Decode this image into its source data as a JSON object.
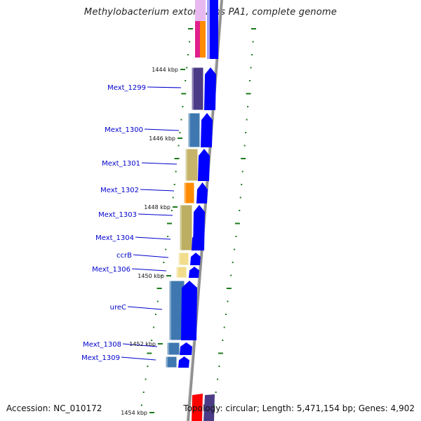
{
  "title": "Methylobacterium extorquens PA1, complete genome",
  "footer": {
    "accession": "Accession: NC_010172",
    "topology": "Topology: circular; Length: 5,471,154 bp; Genes: 4,902"
  },
  "kbp_markers": [
    "1444 kbp",
    "1446 kbp",
    "1448 kbp",
    "1450 kbp",
    "1452 kbp",
    "1454 kbp"
  ],
  "genes": [
    {
      "name": "Mext_1299",
      "cog_color": "#4b3b86"
    },
    {
      "name": "Mext_1300",
      "cog_color": "#3f78b0"
    },
    {
      "name": "Mext_1301",
      "cog_color": "#c6b46a"
    },
    {
      "name": "Mext_1302",
      "cog_color": "#ff8c00"
    },
    {
      "name": "Mext_1303",
      "cog_color": "#bcae62"
    },
    {
      "name": "Mext_1304",
      "cog_color": "#a89a52"
    },
    {
      "name": "ccrB",
      "cog_color": "#f2dd8c"
    },
    {
      "name": "Mext_1306",
      "cog_color": "#f2dd8c"
    },
    {
      "name": "ureC",
      "cog_color": "#3f78b0"
    },
    {
      "name": "Mext_1308",
      "cog_color": "#3f78b0"
    },
    {
      "name": "Mext_1309",
      "cog_color": "#3f78b0"
    }
  ],
  "colors": {
    "backbone": "#909090",
    "cds_arrow": "#0000ff",
    "gene_label": "#0000cc",
    "tick": "#1c7a1c",
    "gene_line": "#0000cc"
  }
}
